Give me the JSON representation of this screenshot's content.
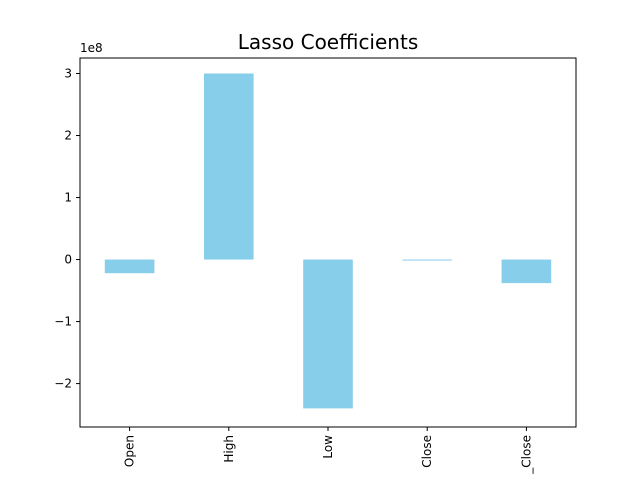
{
  "chart_data": {
    "type": "bar",
    "title": "Lasso Coefficients",
    "categories": [
      "Open",
      "High",
      "Low",
      "Close",
      "_Close"
    ],
    "values": [
      -22000000,
      300000000,
      -240000000,
      -1500000,
      -38000000
    ],
    "ylim": [
      -270000000,
      325000000
    ],
    "yticks": [
      {
        "value": 300000000,
        "label": "3"
      },
      {
        "value": 200000000,
        "label": "2"
      },
      {
        "value": 100000000,
        "label": "1"
      },
      {
        "value": 0,
        "label": "0"
      },
      {
        "value": -100000000,
        "label": "−1"
      },
      {
        "value": -200000000,
        "label": "−2"
      }
    ],
    "offset_label": "1e8",
    "bar_color": "#87ceeb",
    "grid": false,
    "legend": "none"
  }
}
